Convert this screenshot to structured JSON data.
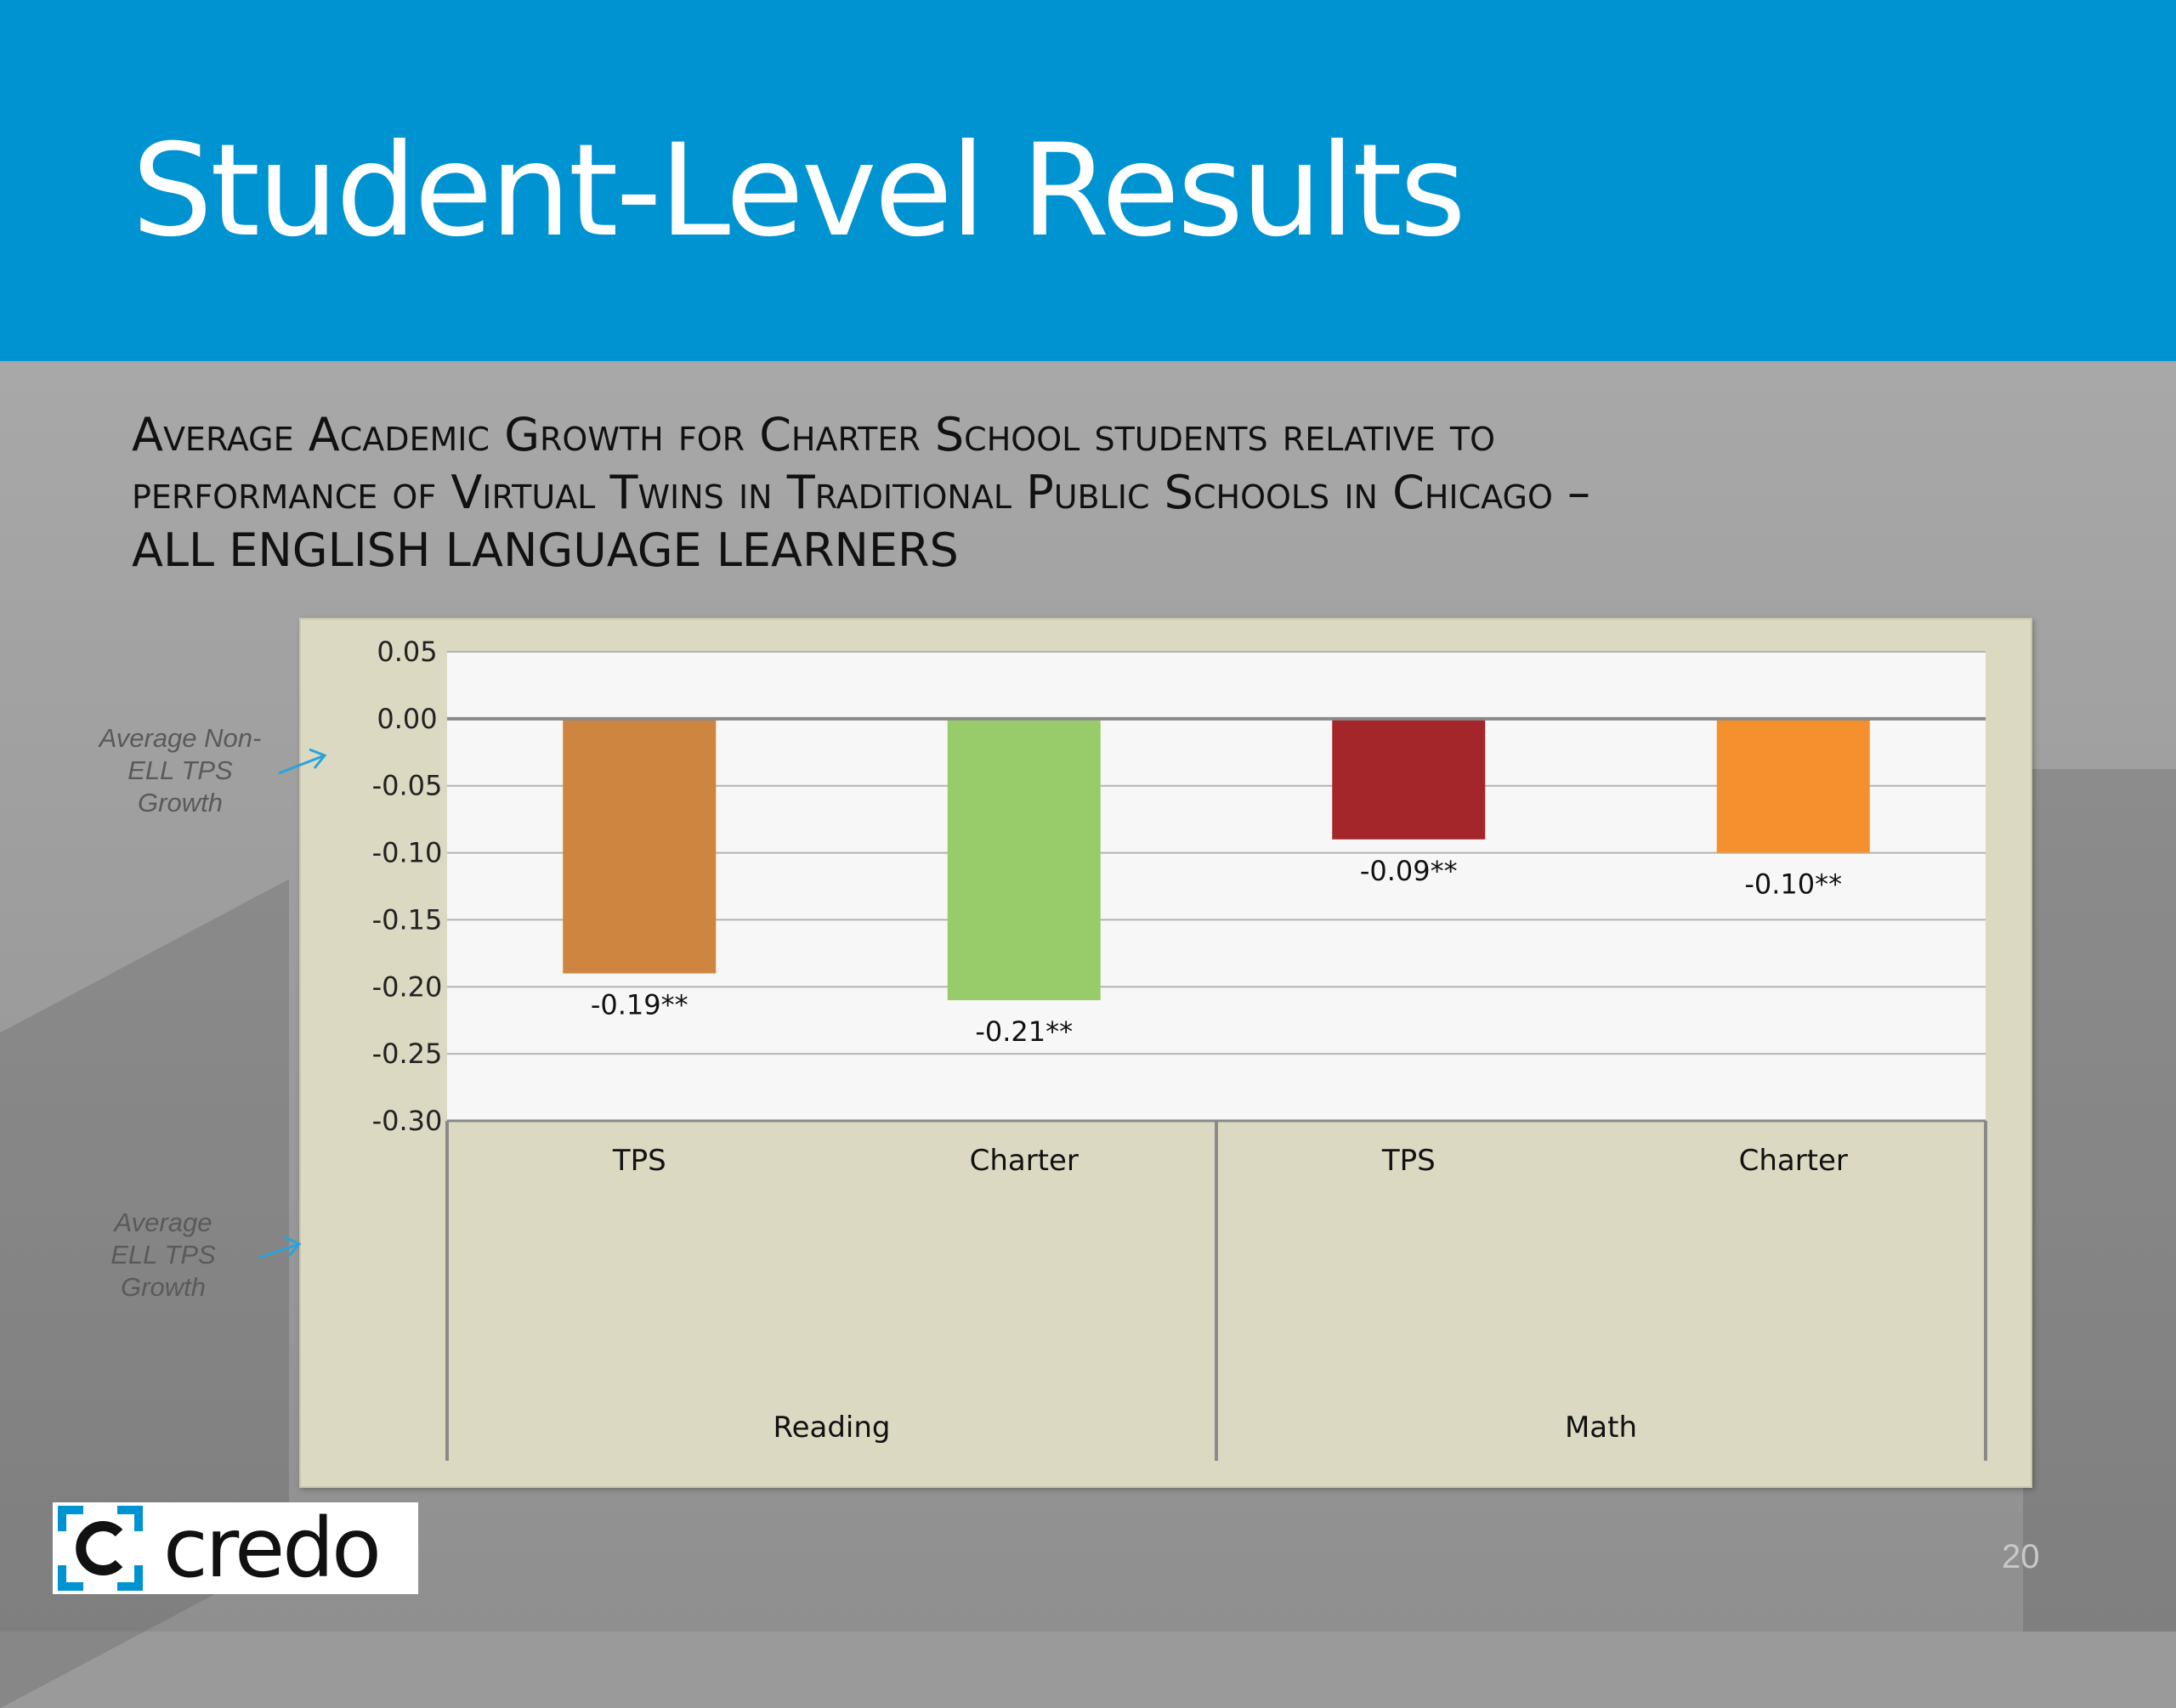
{
  "slide": {
    "title": "Student-Level Results",
    "subtitle_lines": [
      "Average Academic Growth for Charter School students relative to",
      "performance of Virtual Twins in Traditional Public Schools in Chicago –",
      "ALL ENGLISH LANGUAGE LEARNERS"
    ],
    "page_number": "20",
    "logo_text": "credo"
  },
  "annotations": {
    "non_ell": "Average Non-ELL TPS Growth",
    "ell": "Average ELL TPS Growth"
  },
  "colors": {
    "header": "#0093d2",
    "panel": "#dcd9c3",
    "plot": "#f7f7f7"
  },
  "chart_data": {
    "type": "bar",
    "title": "",
    "xlabel": "",
    "ylabel": "",
    "ylim": [
      -0.3,
      0.05
    ],
    "yticks": [
      "0.05",
      "0.00",
      "-0.05",
      "-0.10",
      "-0.15",
      "-0.20",
      "-0.25",
      "-0.30"
    ],
    "ytick_values": [
      0.05,
      0.0,
      -0.05,
      -0.1,
      -0.15,
      -0.2,
      -0.25,
      -0.3
    ],
    "grid": true,
    "legend": "none",
    "groups": [
      "Reading",
      "Math"
    ],
    "categories": [
      "TPS",
      "Charter",
      "TPS",
      "Charter"
    ],
    "category_groups": [
      0,
      0,
      1,
      1
    ],
    "values": [
      -0.19,
      -0.21,
      -0.09,
      -0.1
    ],
    "data_labels": [
      "-0.19**",
      "-0.21**",
      "-0.09**",
      "-0.10**"
    ],
    "bar_colors": [
      "#cd853f",
      "#98cc6a",
      "#a4262a",
      "#f4912e"
    ]
  }
}
